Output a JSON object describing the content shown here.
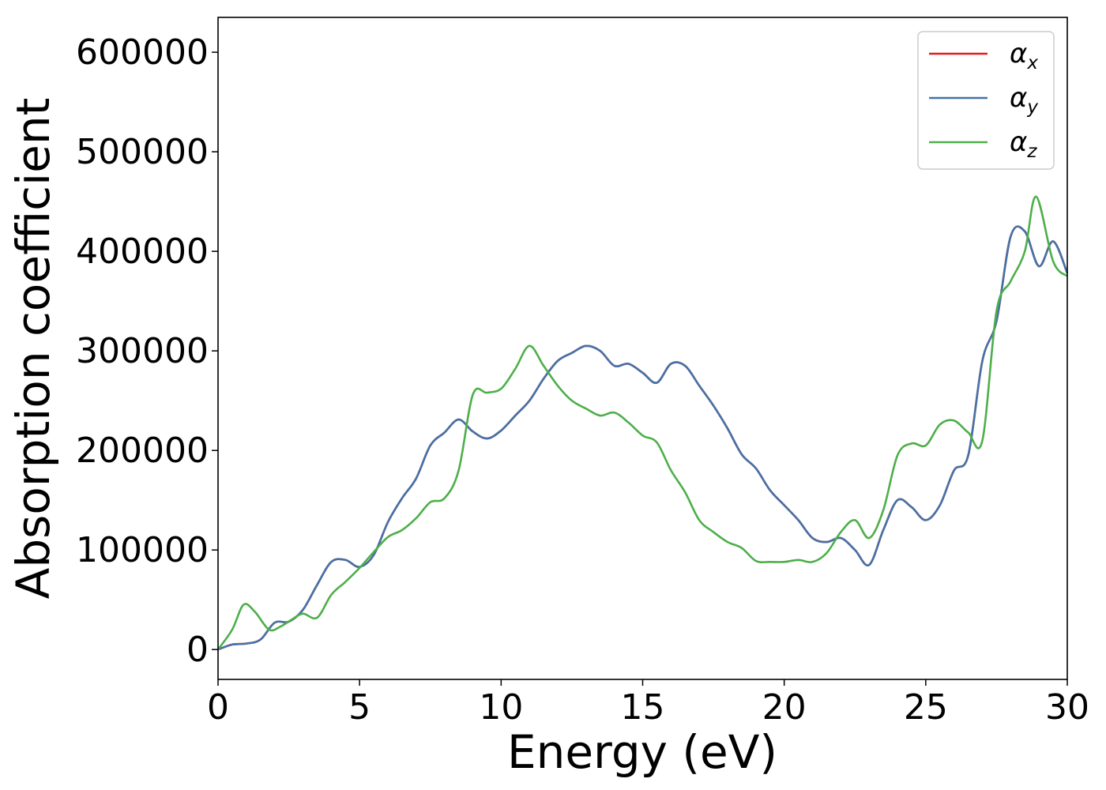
{
  "chart_data": {
    "type": "line",
    "title": "",
    "xlabel": "Energy (eV)",
    "ylabel": "Absorption coefficient",
    "xlim": [
      0,
      30
    ],
    "ylim": [
      -30000,
      635000
    ],
    "xticks": [
      0,
      5,
      10,
      15,
      20,
      25,
      30
    ],
    "yticks": [
      0,
      100000,
      200000,
      300000,
      400000,
      500000,
      600000
    ],
    "xtick_labels": [
      "0",
      "5",
      "10",
      "15",
      "20",
      "25",
      "30"
    ],
    "ytick_labels": [
      "0",
      "100000",
      "200000",
      "300000",
      "400000",
      "500000",
      "600000"
    ],
    "grid": false,
    "legend_position": "top-right",
    "series": [
      {
        "name": "αx",
        "base": "α",
        "sub": "x",
        "color": "#e41a1c",
        "x": [
          0,
          0.5,
          1,
          1.5,
          2,
          2.5,
          3,
          3.5,
          4,
          4.5,
          5,
          5.5,
          6,
          6.5,
          7,
          7.5,
          8,
          8.5,
          9,
          9.5,
          10,
          10.5,
          11,
          11.5,
          12,
          12.5,
          13,
          13.5,
          14,
          14.5,
          15,
          15.5,
          16,
          16.5,
          17,
          17.5,
          18,
          18.5,
          19,
          19.5,
          20,
          20.5,
          21,
          21.5,
          22,
          22.5,
          23,
          23.5,
          24,
          24.5,
          25,
          25.5,
          26,
          26.5,
          27,
          27.5,
          28,
          28.5,
          29,
          29.5,
          30
        ],
        "y": [
          0,
          5000,
          6000,
          10000,
          27000,
          28000,
          40000,
          65000,
          88000,
          90000,
          83000,
          95000,
          128000,
          152000,
          172000,
          205000,
          218000,
          231000,
          219000,
          212000,
          220000,
          235000,
          250000,
          272000,
          290000,
          298000,
          305000,
          300000,
          285000,
          287000,
          278000,
          268000,
          287000,
          285000,
          265000,
          245000,
          222000,
          196000,
          182000,
          160000,
          145000,
          130000,
          112000,
          108000,
          112000,
          100000,
          85000,
          120000,
          150000,
          143000,
          130000,
          145000,
          180000,
          195000,
          290000,
          330000,
          415000,
          420000,
          385000,
          410000,
          378000
        ]
      },
      {
        "name": "αy",
        "base": "α",
        "sub": "y",
        "color": "#4472a8",
        "x": [
          0,
          0.5,
          1,
          1.5,
          2,
          2.5,
          3,
          3.5,
          4,
          4.5,
          5,
          5.5,
          6,
          6.5,
          7,
          7.5,
          8,
          8.5,
          9,
          9.5,
          10,
          10.5,
          11,
          11.5,
          12,
          12.5,
          13,
          13.5,
          14,
          14.5,
          15,
          15.5,
          16,
          16.5,
          17,
          17.5,
          18,
          18.5,
          19,
          19.5,
          20,
          20.5,
          21,
          21.5,
          22,
          22.5,
          23,
          23.5,
          24,
          24.5,
          25,
          25.5,
          26,
          26.5,
          27,
          27.5,
          28,
          28.5,
          29,
          29.5,
          30
        ],
        "y": [
          0,
          5000,
          6000,
          10000,
          27000,
          28000,
          40000,
          65000,
          88000,
          90000,
          83000,
          95000,
          128000,
          152000,
          172000,
          205000,
          218000,
          231000,
          219000,
          212000,
          220000,
          235000,
          250000,
          272000,
          290000,
          298000,
          305000,
          300000,
          285000,
          287000,
          278000,
          268000,
          287000,
          285000,
          265000,
          245000,
          222000,
          196000,
          182000,
          160000,
          145000,
          130000,
          112000,
          108000,
          112000,
          100000,
          85000,
          120000,
          150000,
          143000,
          130000,
          145000,
          180000,
          195000,
          290000,
          330000,
          415000,
          420000,
          385000,
          410000,
          378000
        ]
      },
      {
        "name": "αz",
        "base": "α",
        "sub": "z",
        "color": "#4daf4a",
        "x": [
          0,
          0.5,
          0.9,
          1.3,
          1.8,
          2.2,
          2.6,
          3.0,
          3.5,
          4.0,
          4.5,
          5.0,
          5.5,
          6.0,
          6.5,
          7.0,
          7.5,
          8.0,
          8.5,
          9.0,
          9.5,
          10.0,
          10.5,
          11.0,
          11.5,
          12.0,
          12.5,
          13.0,
          13.5,
          14.0,
          14.5,
          15.0,
          15.5,
          16.0,
          16.5,
          17.0,
          17.5,
          18.0,
          18.5,
          19.0,
          19.5,
          20.0,
          20.5,
          21.0,
          21.5,
          22.0,
          22.5,
          23.0,
          23.5,
          24.0,
          24.5,
          25.0,
          25.5,
          26.0,
          26.5,
          27.0,
          27.5,
          28.0,
          28.5,
          28.9,
          29.5,
          30.0
        ],
        "y": [
          0,
          20000,
          45000,
          38000,
          20000,
          23000,
          30000,
          36000,
          32000,
          55000,
          68000,
          82000,
          98000,
          113000,
          120000,
          132000,
          148000,
          152000,
          180000,
          256000,
          258000,
          262000,
          282000,
          305000,
          285000,
          265000,
          250000,
          242000,
          235000,
          238000,
          228000,
          215000,
          208000,
          180000,
          158000,
          130000,
          118000,
          108000,
          102000,
          89000,
          88000,
          88000,
          90000,
          88000,
          97000,
          118000,
          130000,
          112000,
          140000,
          195000,
          207000,
          205000,
          226000,
          230000,
          218000,
          210000,
          340000,
          370000,
          400000,
          455000,
          390000,
          375000
        ]
      }
    ]
  }
}
